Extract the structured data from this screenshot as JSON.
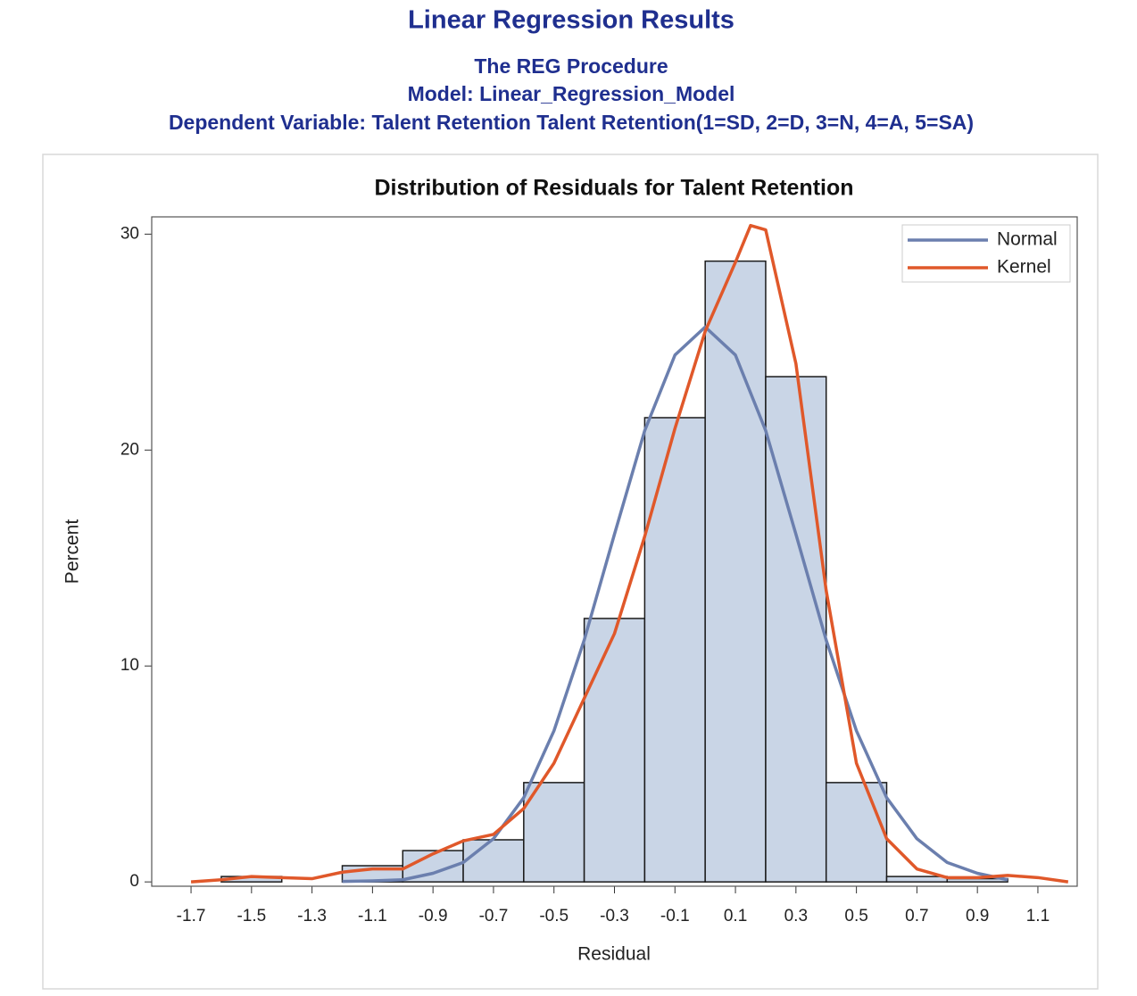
{
  "chart_data": {
    "type": "histogram",
    "title": "Linear Regression Results",
    "subtitle": [
      "The REG Procedure",
      "Model: Linear_Regression_Model",
      "Dependent Variable: Talent Retention Talent Retention(1=SD, 2=D, 3=N, 4=A, 5=SA)"
    ],
    "plot_title": "Distribution of Residuals for Talent Retention",
    "xlabel": "Residual",
    "ylabel": "Percent",
    "bins": [
      -1.6,
      -1.4,
      -1.2,
      -1.0,
      -0.8,
      -0.6,
      -0.4,
      -0.2,
      0,
      0.2,
      0.4,
      0.6,
      0.8,
      1.0
    ],
    "values": [
      0.25,
      0,
      0.75,
      1.45,
      1.95,
      4.6,
      12.2,
      21.5,
      28.75,
      23.4,
      4.6,
      0.25,
      0.15
    ],
    "bar_color": "#c9d5e6",
    "series": [
      {
        "name": "Normal",
        "color": "#6b7fae",
        "x": [
          -1.2,
          -1.1,
          -1.0,
          -0.9,
          -0.8,
          -0.7,
          -0.6,
          -0.5,
          -0.4,
          -0.3,
          -0.2,
          -0.1,
          0,
          0.1,
          0.2,
          0.3,
          0.4,
          0.5,
          0.6,
          0.7,
          0.8,
          0.9,
          1.0
        ],
        "values": [
          0.02,
          0.05,
          0.1,
          0.4,
          0.9,
          2.0,
          3.9,
          7.0,
          11.2,
          16.1,
          20.9,
          24.4,
          25.7,
          24.4,
          20.9,
          16.1,
          11.2,
          7.0,
          3.9,
          2.0,
          0.9,
          0.4,
          0.1
        ]
      },
      {
        "name": "Kernel",
        "color": "#e0582a",
        "x": [
          -1.7,
          -1.6,
          -1.5,
          -1.4,
          -1.3,
          -1.2,
          -1.1,
          -1.0,
          -0.9,
          -0.8,
          -0.7,
          -0.6,
          -0.5,
          -0.4,
          -0.3,
          -0.2,
          -0.1,
          0,
          0.1,
          0.15,
          0.2,
          0.3,
          0.4,
          0.5,
          0.6,
          0.7,
          0.8,
          0.9,
          1.0,
          1.1,
          1.2
        ],
        "values": [
          0,
          0.1,
          0.25,
          0.2,
          0.15,
          0.45,
          0.6,
          0.6,
          1.3,
          1.9,
          2.2,
          3.4,
          5.5,
          8.5,
          11.5,
          16.0,
          21.0,
          25.5,
          28.7,
          30.4,
          30.2,
          24.0,
          13.5,
          5.5,
          2.0,
          0.6,
          0.2,
          0.2,
          0.3,
          0.2,
          0
        ]
      }
    ],
    "xlim": [
      -1.83,
      1.23
    ],
    "ylim": [
      -0.2,
      30.8
    ],
    "xticks": [
      -1.7,
      -1.5,
      -1.3,
      -1.1,
      -0.9,
      -0.7,
      -0.5,
      -0.3,
      -0.1,
      0.1,
      0.3,
      0.5,
      0.7,
      0.9,
      1.1
    ],
    "yticks": [
      0,
      10,
      20,
      30
    ],
    "legend": "upper right"
  }
}
